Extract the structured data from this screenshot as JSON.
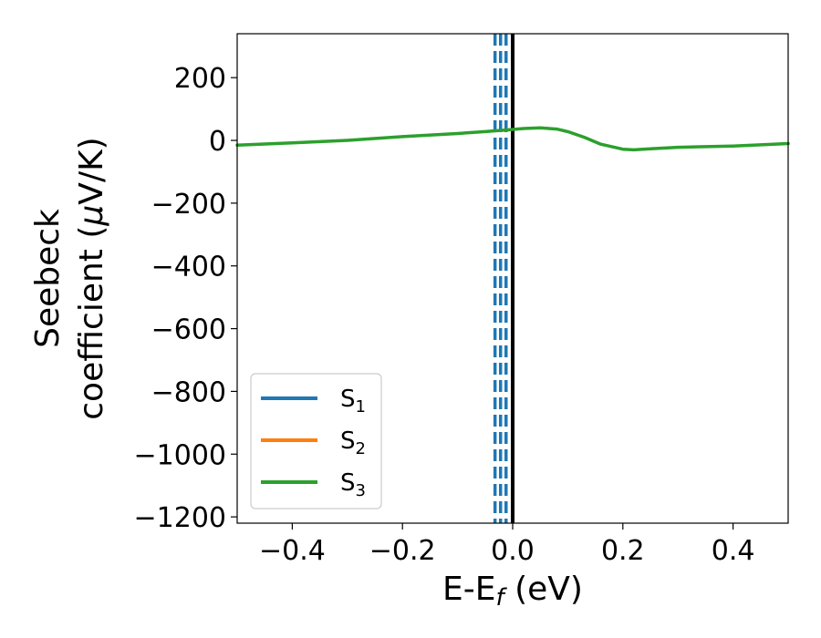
{
  "chart_data": {
    "type": "line",
    "xlabel": {
      "base": "E-E",
      "sub": "f",
      "suffix": " (eV)"
    },
    "ylabel": {
      "line1": "Seebeck",
      "line2": "coefficient  (",
      "mu": "μ",
      "rest": "V/K)"
    },
    "xlim": [
      -0.5,
      0.5
    ],
    "ylim": [
      -1220,
      340
    ],
    "xticks": [
      {
        "value": -0.4,
        "label": "−0.4"
      },
      {
        "value": -0.2,
        "label": "−0.2"
      },
      {
        "value": 0.0,
        "label": "0.0"
      },
      {
        "value": 0.2,
        "label": "0.2"
      },
      {
        "value": 0.4,
        "label": "0.4"
      }
    ],
    "yticks": [
      {
        "value": 200,
        "label": "200"
      },
      {
        "value": 0,
        "label": "0"
      },
      {
        "value": -200,
        "label": "−200"
      },
      {
        "value": -400,
        "label": "−400"
      },
      {
        "value": -600,
        "label": "−600"
      },
      {
        "value": -800,
        "label": "−800"
      },
      {
        "value": -1000,
        "label": "−1000"
      },
      {
        "value": -1200,
        "label": "−1200"
      }
    ],
    "grid": false,
    "legend_position": "bottom-left",
    "series": [
      {
        "name": "S",
        "sub": "1",
        "color": "#1f77b4",
        "x": [],
        "y": []
      },
      {
        "name": "S",
        "sub": "2",
        "color": "#ff7f0e",
        "x": [],
        "y": []
      },
      {
        "name": "S",
        "sub": "3",
        "color": "#2ca02c",
        "x": [
          -0.5,
          -0.4,
          -0.3,
          -0.2,
          -0.1,
          -0.05,
          -0.02,
          0.0,
          0.02,
          0.05,
          0.08,
          0.1,
          0.13,
          0.16,
          0.2,
          0.22,
          0.25,
          0.3,
          0.4,
          0.5
        ],
        "y": [
          -15,
          -8,
          0,
          12,
          22,
          28,
          32,
          35,
          38,
          40,
          36,
          28,
          10,
          -12,
          -28,
          -30,
          -27,
          -22,
          -18,
          -10
        ]
      }
    ],
    "vertical_lines": [
      {
        "x": -0.032,
        "style": "dashed",
        "color": "#1f77b4"
      },
      {
        "x": -0.022,
        "style": "dashed",
        "color": "#1f77b4"
      },
      {
        "x": -0.012,
        "style": "dashed",
        "color": "#1f77b4"
      },
      {
        "x": 0.0,
        "style": "solid",
        "color": "#000000"
      }
    ]
  }
}
